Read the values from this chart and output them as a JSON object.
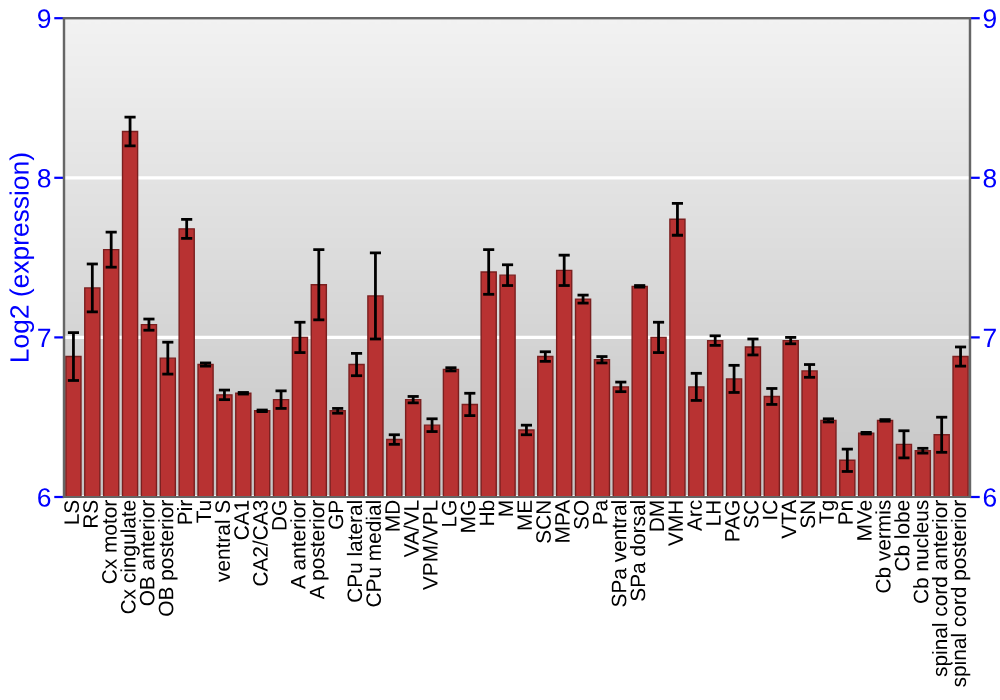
{
  "chart_data": {
    "type": "bar",
    "ylabel": "Log2 (expression)",
    "categories": [
      "LS",
      "RS",
      "Cx motor",
      "Cx cingulate",
      "OB anterior",
      "OB posterior",
      "Pir",
      "Tu",
      "ventral S",
      "CA1",
      "CA2/CA3",
      "DG",
      "A anterior",
      "A posterior",
      "GP",
      "CPu lateral",
      "CPu medial",
      "MD",
      "VA/VL",
      "VPM/VPL",
      "LG",
      "MG",
      "Hb",
      "M",
      "ME",
      "SCN",
      "MPA",
      "SO",
      "Pa",
      "SPa ventral",
      "SPa dorsal",
      "DM",
      "VMH",
      "Arc",
      "LH",
      "PAG",
      "SC",
      "IC",
      "VTA",
      "SN",
      "Tg",
      "Pn",
      "MVe",
      "Cb vermis",
      "Cb lobe",
      "Cb nucleus",
      "spinal cord anterior",
      "spinal cord posterior"
    ],
    "values": [
      6.88,
      7.31,
      7.55,
      8.29,
      7.08,
      6.87,
      7.68,
      6.83,
      6.64,
      6.65,
      6.54,
      6.61,
      7.0,
      7.33,
      6.54,
      6.83,
      7.26,
      6.36,
      6.61,
      6.45,
      6.8,
      6.58,
      7.41,
      7.39,
      6.42,
      6.88,
      7.42,
      7.24,
      6.86,
      6.69,
      7.32,
      7.0,
      7.74,
      6.69,
      6.98,
      6.74,
      6.94,
      6.63,
      6.98,
      6.79,
      6.48,
      6.23,
      6.4,
      6.48,
      6.33,
      6.29,
      6.39,
      6.88
    ],
    "errors": [
      0.15,
      0.15,
      0.11,
      0.09,
      0.035,
      0.1,
      0.06,
      0.01,
      0.03,
      0.005,
      0.005,
      0.055,
      0.095,
      0.22,
      0.015,
      0.07,
      0.27,
      0.03,
      0.02,
      0.04,
      0.01,
      0.07,
      0.14,
      0.065,
      0.03,
      0.03,
      0.095,
      0.025,
      0.02,
      0.03,
      0.005,
      0.095,
      0.1,
      0.085,
      0.03,
      0.085,
      0.05,
      0.05,
      0.02,
      0.04,
      0.01,
      0.07,
      0.005,
      0.005,
      0.085,
      0.015,
      0.11,
      0.06
    ],
    "color": "#b83232",
    "ylim": [
      6,
      9
    ],
    "yticks": [
      6,
      7,
      8,
      9
    ],
    "y2lim": [
      6,
      9
    ],
    "y2ticks": [
      6,
      7,
      8,
      9
    ],
    "grid": "y"
  }
}
